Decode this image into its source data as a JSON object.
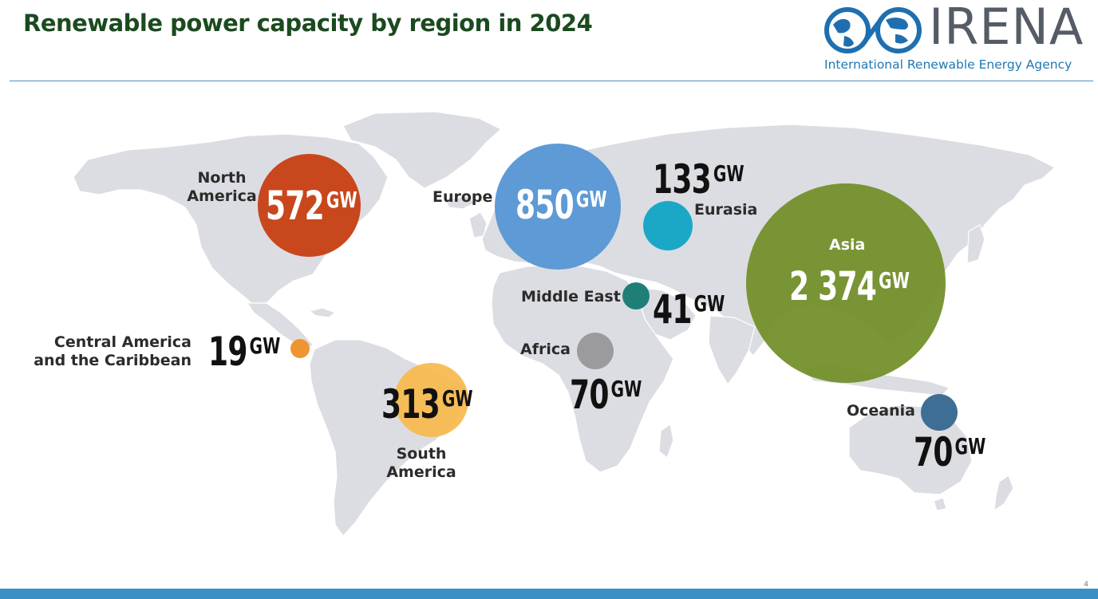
{
  "title": "Renewable power capacity by region in 2024",
  "logo": {
    "wordmark": "IRENA",
    "subtitle": "International Renewable Energy Agency"
  },
  "unit": "GW",
  "regions": [
    {
      "name": "North America",
      "label_lines": [
        "North",
        "America"
      ],
      "value_text": "572",
      "value": 572,
      "color": "#c9471c"
    },
    {
      "name": "Europe",
      "label_lines": [
        "Europe"
      ],
      "value_text": "850",
      "value": 850,
      "color": "#5d9ad6"
    },
    {
      "name": "Eurasia",
      "label_lines": [
        "Eurasia"
      ],
      "value_text": "133",
      "value": 133,
      "color": "#1ba8c7"
    },
    {
      "name": "Asia",
      "label_lines": [
        "Asia"
      ],
      "value_text": "2 374",
      "value": 2374,
      "color": "#6f8d25"
    },
    {
      "name": "Middle East",
      "label_lines": [
        "Middle East"
      ],
      "value_text": "41",
      "value": 41,
      "color": "#1e7f78"
    },
    {
      "name": "Africa",
      "label_lines": [
        "Africa"
      ],
      "value_text": "70",
      "value": 70,
      "color": "#9b9b9e"
    },
    {
      "name": "Central America and the Caribbean",
      "label_lines": [
        "Central America",
        "and the Caribbean"
      ],
      "value_text": "19",
      "value": 19,
      "color": "#ee9530"
    },
    {
      "name": "South America",
      "label_lines": [
        "South",
        "America"
      ],
      "value_text": "313",
      "value": 313,
      "color": "#f6b94c"
    },
    {
      "name": "Oceania",
      "label_lines": [
        "Oceania"
      ],
      "value_text": "70",
      "value": 70,
      "color": "#3f6e94"
    }
  ],
  "colors": {
    "title": "#1b4a1f",
    "land": "#dcdde2",
    "rule": "#4f8fbf",
    "footer": "#3a8fc4"
  },
  "footer": {
    "page_number": "4"
  }
}
